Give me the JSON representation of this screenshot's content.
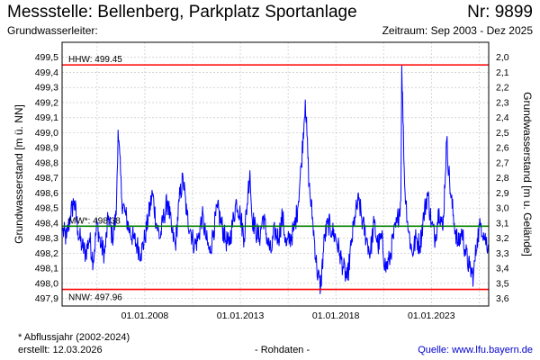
{
  "header": {
    "title": "Messstelle: Bellenberg, Parkplatz Sportanlage",
    "station_number": "Nr: 9899",
    "aquifer_label": "Grundwasserleiter:",
    "period": "Zeitraum: Sep 2003 - Dez 2025"
  },
  "footer": {
    "footnote": "* Abflussjahr (2002-2024)",
    "created": "erstellt:  12.03.2026",
    "raw_data": "- Rohdaten -",
    "source": "Quelle: www.lfu.bayern.de"
  },
  "colors": {
    "series": "#0000ff",
    "hhw_line": "#ff0000",
    "nnw_line": "#ff0000",
    "mw_line": "#008000",
    "grid": "#c8c8c8"
  },
  "chart_data": {
    "type": "line",
    "title": "Messstelle: Bellenberg, Parkplatz Sportanlage",
    "ylabel": "Grundwasserstand [m ü. NN]",
    "y2label": "Grundwasserstand [m u. Gelände]",
    "xlim": [
      2003.67,
      2026.0
    ],
    "ylim": [
      497.85,
      499.6
    ],
    "y2lim": [
      3.65,
      1.9
    ],
    "yticks": [
      "497,9",
      "498,0",
      "498,1",
      "498,2",
      "498,3",
      "498,4",
      "498,5",
      "498,6",
      "498,7",
      "498,8",
      "498,9",
      "499,0",
      "499,1",
      "499,2",
      "499,3",
      "499,4",
      "499,5"
    ],
    "yticks_values": [
      497.9,
      498.0,
      498.1,
      498.2,
      498.3,
      498.4,
      498.5,
      498.6,
      498.7,
      498.8,
      498.9,
      499.0,
      499.1,
      499.2,
      499.3,
      499.4,
      499.5
    ],
    "y2ticks": [
      "2,0",
      "2,1",
      "2,2",
      "2,3",
      "2,4",
      "2,5",
      "2,6",
      "2,7",
      "2,8",
      "2,9",
      "3,0",
      "3,1",
      "3,2",
      "3,3",
      "3,4",
      "3,5",
      "3,6"
    ],
    "xticks": [
      "01.01.2008",
      "01.01.2013",
      "01.01.2018",
      "01.01.2023"
    ],
    "xticks_values": [
      2008.0,
      2013.0,
      2018.0,
      2023.0
    ],
    "xgrid_values": [
      2005.5,
      2008.0,
      2010.5,
      2013.0,
      2015.5,
      2018.0,
      2020.5,
      2023.0,
      2025.5
    ],
    "reference_lines": [
      {
        "name": "HHW",
        "label": "HHW: 499.45",
        "value": 499.45
      },
      {
        "name": "MW",
        "label": "MW*: 498.38",
        "value": 498.38
      },
      {
        "name": "NNW",
        "label": "NNW: 497.96",
        "value": 497.96
      }
    ],
    "series": [
      {
        "name": "Grundwasserstand",
        "x": [
          2003.7,
          2003.9,
          2004.1,
          2004.3,
          2004.5,
          2004.7,
          2004.9,
          2005.1,
          2005.3,
          2005.5,
          2005.7,
          2005.9,
          2006.1,
          2006.3,
          2006.5,
          2006.6,
          2006.8,
          2007.0,
          2007.2,
          2007.4,
          2007.6,
          2007.8,
          2008.0,
          2008.2,
          2008.4,
          2008.6,
          2008.8,
          2009.0,
          2009.2,
          2009.4,
          2009.6,
          2009.8,
          2010.0,
          2010.2,
          2010.4,
          2010.6,
          2010.8,
          2011.0,
          2011.2,
          2011.4,
          2011.6,
          2011.8,
          2012.0,
          2012.2,
          2012.4,
          2012.6,
          2012.8,
          2013.0,
          2013.2,
          2013.4,
          2013.5,
          2013.6,
          2013.8,
          2014.0,
          2014.2,
          2014.4,
          2014.6,
          2014.8,
          2015.0,
          2015.2,
          2015.4,
          2015.6,
          2015.8,
          2016.0,
          2016.2,
          2016.4,
          2016.6,
          2016.8,
          2017.0,
          2017.2,
          2017.4,
          2017.6,
          2017.8,
          2018.0,
          2018.2,
          2018.4,
          2018.6,
          2018.8,
          2019.0,
          2019.2,
          2019.4,
          2019.6,
          2019.8,
          2020.0,
          2020.2,
          2020.4,
          2020.6,
          2020.8,
          2021.0,
          2021.2,
          2021.4,
          2021.45,
          2021.6,
          2021.8,
          2022.0,
          2022.2,
          2022.4,
          2022.6,
          2022.8,
          2023.0,
          2023.2,
          2023.4,
          2023.6,
          2023.8,
          2024.0,
          2024.2,
          2024.4,
          2024.6,
          2024.8,
          2025.0,
          2025.2,
          2025.4,
          2025.6,
          2025.8,
          2026.0
        ],
        "values": [
          498.35,
          498.3,
          498.45,
          498.55,
          498.35,
          498.25,
          498.2,
          498.3,
          498.15,
          498.4,
          498.25,
          498.2,
          498.45,
          498.3,
          498.45,
          499.02,
          498.55,
          498.45,
          498.35,
          498.3,
          498.25,
          498.2,
          498.3,
          498.45,
          498.6,
          498.4,
          498.3,
          498.45,
          498.55,
          498.35,
          498.25,
          498.55,
          498.7,
          498.45,
          498.35,
          498.25,
          498.3,
          498.45,
          498.3,
          498.2,
          498.35,
          498.5,
          498.4,
          498.3,
          498.25,
          498.4,
          498.55,
          498.45,
          498.3,
          498.6,
          498.75,
          498.45,
          498.35,
          498.3,
          498.45,
          498.3,
          498.2,
          498.35,
          498.3,
          498.45,
          498.25,
          498.3,
          498.35,
          498.5,
          498.8,
          499.22,
          498.65,
          498.4,
          498.1,
          497.97,
          498.3,
          498.4,
          498.35,
          498.3,
          498.2,
          498.1,
          498.02,
          498.25,
          498.45,
          498.55,
          498.4,
          498.3,
          498.2,
          498.4,
          498.25,
          498.3,
          498.1,
          498.15,
          498.3,
          498.4,
          498.55,
          499.45,
          498.65,
          498.35,
          498.2,
          498.3,
          498.25,
          498.45,
          498.6,
          498.4,
          498.3,
          498.5,
          498.35,
          498.95,
          498.6,
          498.4,
          498.25,
          498.35,
          498.2,
          498.1,
          498.05,
          498.3,
          498.4,
          498.3,
          498.25
        ]
      }
    ]
  }
}
